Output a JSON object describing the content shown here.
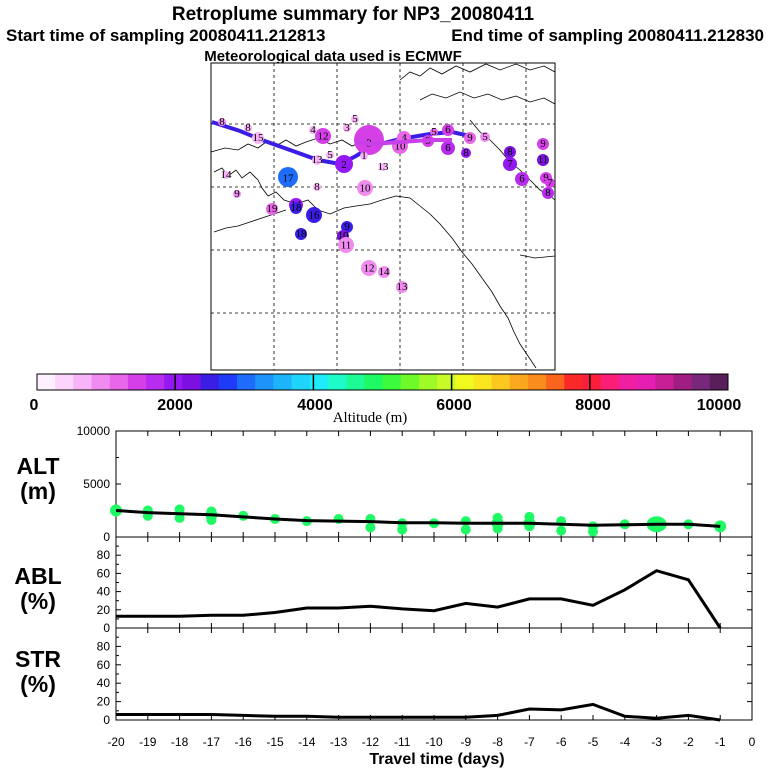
{
  "title": "Retroplume summary for NP3_20080411",
  "start_time": "Start time of sampling 20080411.212813",
  "end_time": "End time of sampling 20080411.212830",
  "meteo": "Meteorological data used is ECMWF",
  "colorbar": {
    "label": "Altitude (m)",
    "ticks": [
      "0",
      "2000",
      "4000",
      "6000",
      "8000",
      "10000"
    ],
    "colors": [
      "#fff0ff",
      "#fcd4fc",
      "#f8b4f8",
      "#f08cf0",
      "#e866e8",
      "#d53fe8",
      "#b82cf0",
      "#9418f2",
      "#7c10e0",
      "#3b1ee6",
      "#1e3cf8",
      "#1e6cfa",
      "#1e94fa",
      "#1eb4fa",
      "#1ed4fa",
      "#1eecfa",
      "#1efac8",
      "#1efa96",
      "#1efa64",
      "#3cfa3c",
      "#6efa28",
      "#a0fa28",
      "#c8fa28",
      "#f0fa1e",
      "#fae61e",
      "#fac81e",
      "#faa81e",
      "#fa8c1e",
      "#fa641e",
      "#fa2828",
      "#fa1e3c",
      "#fa1e78",
      "#f01ea0",
      "#e61eb4",
      "#c81e96",
      "#a01e82",
      "#78287a",
      "#5a1e5a"
    ]
  },
  "map": {
    "trajectory_color": "#3b1ee6",
    "points": [
      {
        "label": "8",
        "color": "#f08cf0"
      },
      {
        "label": "8",
        "color": "#f8b4f8"
      },
      {
        "label": "15",
        "color": "#f8b4f8"
      },
      {
        "label": "12",
        "color": "#d53fe8"
      },
      {
        "label": "4",
        "color": "#f8b4f8"
      },
      {
        "label": "3",
        "color": "#f8b4f8"
      },
      {
        "label": "5",
        "color": "#f8b4f8"
      },
      {
        "label": "3",
        "color": "#d53fe8"
      },
      {
        "label": "4",
        "color": "#e866e8"
      },
      {
        "label": "10",
        "color": "#e866e8"
      },
      {
        "label": "9",
        "color": "#d53fe8"
      },
      {
        "label": "5",
        "color": "#e866e8"
      },
      {
        "label": "6",
        "color": "#d53fe8"
      },
      {
        "label": "6",
        "color": "#b82cf0"
      },
      {
        "label": "9",
        "color": "#e866e8"
      },
      {
        "label": "8",
        "color": "#9418f2"
      },
      {
        "label": "5",
        "color": "#f08cf0"
      },
      {
        "label": "9",
        "color": "#d53fe8"
      },
      {
        "label": "8",
        "color": "#7c10e0"
      },
      {
        "label": "7",
        "color": "#9418f2"
      },
      {
        "label": "11",
        "color": "#7c10e0"
      },
      {
        "label": "9",
        "color": "#d53fe8"
      },
      {
        "label": "6",
        "color": "#b82cf0"
      },
      {
        "label": "8",
        "color": "#b82cf0"
      },
      {
        "label": "7",
        "color": "#d53fe8"
      },
      {
        "label": "14",
        "color": "#f8b4f8"
      },
      {
        "label": "5",
        "color": "#f8b4f8"
      },
      {
        "label": "13",
        "color": "#f8b4f8"
      },
      {
        "label": "1",
        "color": "#f8b4f8"
      },
      {
        "label": "2",
        "color": "#9418f2"
      },
      {
        "label": "13",
        "color": "#f8b4f8"
      },
      {
        "label": "10",
        "color": "#f08cf0"
      },
      {
        "label": "17",
        "color": "#1e6cfa"
      },
      {
        "label": "14",
        "color": "#9418f2"
      },
      {
        "label": "8",
        "color": "#f8b4f8"
      },
      {
        "label": "9",
        "color": "#f08cf0"
      },
      {
        "label": "19",
        "color": "#e866e8"
      },
      {
        "label": "18",
        "color": "#3b1ee6"
      },
      {
        "label": "16",
        "color": "#3b1ee6"
      },
      {
        "label": "18",
        "color": "#3b1ee6"
      },
      {
        "label": "9",
        "color": "#3b1ee6"
      },
      {
        "label": "10",
        "color": "#7c10e0"
      },
      {
        "label": "11",
        "color": "#f08cf0"
      },
      {
        "label": "12",
        "color": "#f08cf0"
      },
      {
        "label": "14",
        "color": "#f08cf0"
      },
      {
        "label": "13",
        "color": "#f08cf0"
      }
    ]
  },
  "chart_data": [
    {
      "type": "line",
      "panel": "ALT",
      "ylabel_line1": "ALT",
      "ylabel_line2": "(m)",
      "ylim": [
        0,
        10000
      ],
      "yticks": [
        "10000",
        "5000",
        "0"
      ],
      "x": [
        -20,
        -19,
        -18,
        -17,
        -16,
        -15,
        -14,
        -13,
        -12,
        -11,
        -10,
        -9,
        -8,
        -7,
        -6,
        -5,
        -4,
        -3,
        -2,
        -1
      ],
      "values": [
        2500,
        2300,
        2200,
        2100,
        1900,
        1700,
        1550,
        1500,
        1450,
        1350,
        1350,
        1300,
        1300,
        1300,
        1200,
        1100,
        1150,
        1200,
        1200,
        1000
      ],
      "marker_color": "#1efa64",
      "scatter": [
        {
          "x": -20,
          "y": 2600
        },
        {
          "x": -19,
          "y": 2500
        },
        {
          "x": -19,
          "y": 2000
        },
        {
          "x": -18,
          "y": 2600
        },
        {
          "x": -18,
          "y": 1800
        },
        {
          "x": -17,
          "y": 2400
        },
        {
          "x": -17,
          "y": 1600
        },
        {
          "x": -16,
          "y": 2000
        },
        {
          "x": -15,
          "y": 1700
        },
        {
          "x": -14,
          "y": 1500
        },
        {
          "x": -13,
          "y": 1700
        },
        {
          "x": -12,
          "y": 1700
        },
        {
          "x": -12,
          "y": 900
        },
        {
          "x": -11,
          "y": 1300
        },
        {
          "x": -11,
          "y": 700
        },
        {
          "x": -10,
          "y": 1300
        },
        {
          "x": -9,
          "y": 1500
        },
        {
          "x": -9,
          "y": 700
        },
        {
          "x": -8,
          "y": 1800
        },
        {
          "x": -8,
          "y": 800
        },
        {
          "x": -7,
          "y": 1900
        },
        {
          "x": -7,
          "y": 1000
        },
        {
          "x": -6,
          "y": 1500
        },
        {
          "x": -6,
          "y": 600
        },
        {
          "x": -5,
          "y": 1000
        },
        {
          "x": -5,
          "y": 500
        },
        {
          "x": -4,
          "y": 1200
        },
        {
          "x": -3,
          "y": 1300
        },
        {
          "x": -2,
          "y": 1200
        },
        {
          "x": -1,
          "y": 1000
        }
      ]
    },
    {
      "type": "line",
      "panel": "ABL",
      "ylabel_line1": "ABL",
      "ylabel_line2": "(%)",
      "ylim": [
        0,
        100
      ],
      "yticks": [
        "80",
        "60",
        "40",
        "20",
        "0"
      ],
      "x": [
        -20,
        -19,
        -18,
        -17,
        -16,
        -15,
        -14,
        -13,
        -12,
        -11,
        -10,
        -9,
        -8,
        -7,
        -6,
        -5,
        -4,
        -3,
        -2,
        -1
      ],
      "values": [
        13,
        13,
        13,
        14,
        14,
        17,
        22,
        22,
        24,
        21,
        19,
        27,
        23,
        32,
        32,
        25,
        42,
        63,
        53,
        0
      ]
    },
    {
      "type": "line",
      "panel": "STR",
      "ylabel_line1": "STR",
      "ylabel_line2": "(%)",
      "ylim": [
        0,
        100
      ],
      "yticks": [
        "80",
        "60",
        "40",
        "20",
        "0"
      ],
      "x": [
        -20,
        -19,
        -18,
        -17,
        -16,
        -15,
        -14,
        -13,
        -12,
        -11,
        -10,
        -9,
        -8,
        -7,
        -6,
        -5,
        -4,
        -3,
        -2,
        -1
      ],
      "values": [
        6,
        6,
        6,
        6,
        5,
        4,
        4,
        3,
        3,
        3,
        3,
        3,
        5,
        12,
        11,
        17,
        4,
        2,
        5,
        0
      ]
    }
  ],
  "xaxis": {
    "ticks": [
      "-20",
      "-19",
      "-18",
      "-17",
      "-16",
      "-15",
      "-14",
      "-13",
      "-12",
      "-11",
      "-10",
      "-9",
      "-8",
      "-7",
      "-6",
      "-5",
      "-4",
      "-3",
      "-2",
      "-1",
      "0"
    ],
    "label": "Travel time (days)"
  }
}
